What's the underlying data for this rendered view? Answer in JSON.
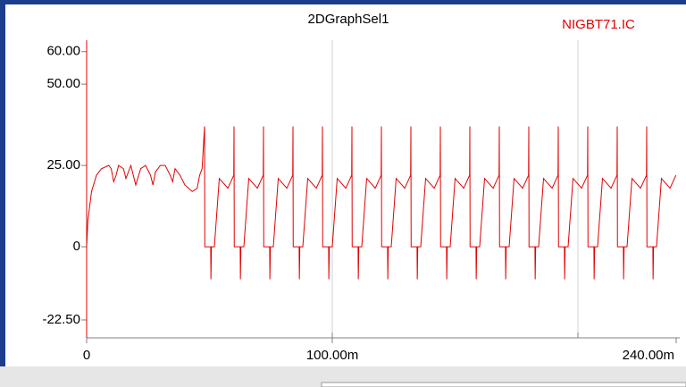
{
  "chart_data": {
    "type": "line",
    "title": "2DGraphSel1",
    "xlim": [
      0,
      240
    ],
    "xticks": [
      0,
      {
        "value": 100,
        "label": "100.00m"
      },
      {
        "value": 240,
        "label": "240.00m"
      }
    ],
    "xgrid": [
      100,
      200
    ],
    "ylim": [
      -28,
      63.5
    ],
    "yticks": [
      {
        "value": 60,
        "label": "60.00"
      },
      {
        "value": 50,
        "label": "50.00"
      },
      {
        "value": 25,
        "label": "25.00"
      },
      0,
      {
        "value": -22.5,
        "label": "-22.50"
      }
    ],
    "grid": true,
    "legend": "top-right",
    "x": [
      0,
      0.5,
      2,
      4,
      6,
      9,
      10,
      11,
      12,
      13,
      15,
      16,
      18,
      20,
      22,
      24,
      26,
      27,
      28,
      30,
      32,
      34,
      35,
      36,
      38,
      40,
      43,
      45,
      46,
      47,
      48,
      48.1,
      50.5,
      50.6,
      50.8,
      52,
      54,
      57.5,
      59.9,
      60,
      60.1,
      62.5,
      62.6,
      62.8,
      64,
      66,
      69.5,
      71.9,
      72,
      72.1,
      74.5,
      74.6,
      74.8,
      76,
      78,
      81.5,
      83.9,
      84,
      84.1,
      86.5,
      86.6,
      86.8,
      88,
      90,
      93.5,
      95.9,
      96,
      96.1,
      98.5,
      98.6,
      98.8,
      100,
      102,
      105.5,
      107.9,
      108,
      108.1,
      110.5,
      110.6,
      110.8,
      112,
      114,
      117.5,
      119.9,
      120,
      120.1,
      122.5,
      122.6,
      122.8,
      124,
      126,
      129.5,
      131.9,
      132,
      132.1,
      134.5,
      134.6,
      134.8,
      136,
      138,
      141.5,
      143.9,
      144,
      144.1,
      146.5,
      146.6,
      146.8,
      148,
      150,
      153.5,
      155.9,
      156,
      156.1,
      158.5,
      158.6,
      158.8,
      160,
      162,
      165.5,
      167.9,
      168,
      168.1,
      170.5,
      170.6,
      170.8,
      172,
      174,
      177.5,
      179.9,
      180,
      180.1,
      182.5,
      182.6,
      182.8,
      184,
      186,
      189.5,
      191.9,
      192,
      192.1,
      194.5,
      194.6,
      194.8,
      196,
      198,
      201.5,
      203.9,
      204,
      204.1,
      206.5,
      206.6,
      206.8,
      208,
      210,
      213.5,
      215.9,
      216,
      216.1,
      218.5,
      218.6,
      218.8,
      220,
      222,
      225.5,
      227.9,
      228,
      228.1,
      230.5,
      230.6,
      230.8,
      232,
      234,
      237.5,
      239.9
    ],
    "series": [
      {
        "name": "NIGBT71.IC",
        "color": "#e00000",
        "values": [
          0,
          8,
          17,
          22,
          24,
          25,
          24,
          20,
          22,
          25,
          24,
          21,
          25,
          19,
          24,
          25,
          22,
          19,
          23,
          25,
          25,
          22,
          20,
          24,
          22,
          19,
          17,
          18,
          22,
          24,
          37,
          0,
          0,
          -10,
          0,
          0,
          21,
          18,
          22,
          37,
          0,
          0,
          -10,
          0,
          0,
          21,
          18,
          22,
          37,
          0,
          0,
          -10,
          0,
          0,
          21,
          18,
          22,
          37,
          0,
          0,
          -10,
          0,
          0,
          21,
          18,
          22,
          37,
          0,
          0,
          -10,
          0,
          0,
          21,
          18,
          22,
          37,
          0,
          0,
          -10,
          0,
          0,
          21,
          18,
          22,
          37,
          0,
          0,
          -10,
          0,
          0,
          21,
          18,
          22,
          37,
          0,
          0,
          -10,
          0,
          0,
          21,
          18,
          22,
          37,
          0,
          0,
          -10,
          0,
          0,
          21,
          18,
          22,
          37,
          0,
          0,
          -10,
          0,
          0,
          21,
          18,
          22,
          37,
          0,
          0,
          -10,
          0,
          0,
          21,
          18,
          22,
          37,
          0,
          0,
          -10,
          0,
          0,
          21,
          18,
          22,
          37,
          0,
          0,
          -10,
          0,
          0,
          21,
          18,
          22,
          37,
          0,
          0,
          -10,
          0,
          0,
          21,
          18,
          22,
          37,
          0,
          0,
          -10,
          0,
          0,
          21,
          18,
          22,
          37,
          0,
          0,
          -10,
          0,
          0,
          21,
          18,
          22
        ]
      }
    ]
  }
}
